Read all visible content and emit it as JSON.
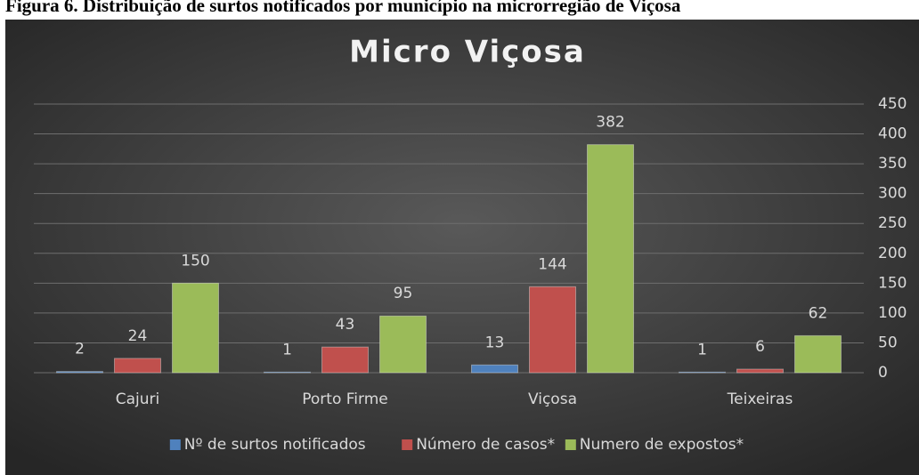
{
  "caption": "Figura 6. Distribuição de surtos notificados por município na microrregião de Viçosa",
  "chart_data": {
    "type": "bar",
    "title": "Micro Viçosa",
    "categories": [
      "Cajuri",
      "Porto Firme",
      "Viçosa",
      "Teixeiras"
    ],
    "series": [
      {
        "name": "Nº de surtos notificados",
        "color": "#4f81bd",
        "values": [
          2,
          1,
          13,
          1
        ]
      },
      {
        "name": "Número de casos*",
        "color": "#c0504d",
        "values": [
          24,
          43,
          144,
          6
        ]
      },
      {
        "name": "Numero de expostos*",
        "color": "#9bbb59",
        "values": [
          150,
          95,
          382,
          62
        ]
      }
    ],
    "ylim": [
      0,
      450
    ],
    "yticks": [
      0,
      50,
      100,
      150,
      200,
      250,
      300,
      350,
      400,
      450
    ],
    "grid": true,
    "legend": "bottom",
    "y_axis_side": "right"
  }
}
